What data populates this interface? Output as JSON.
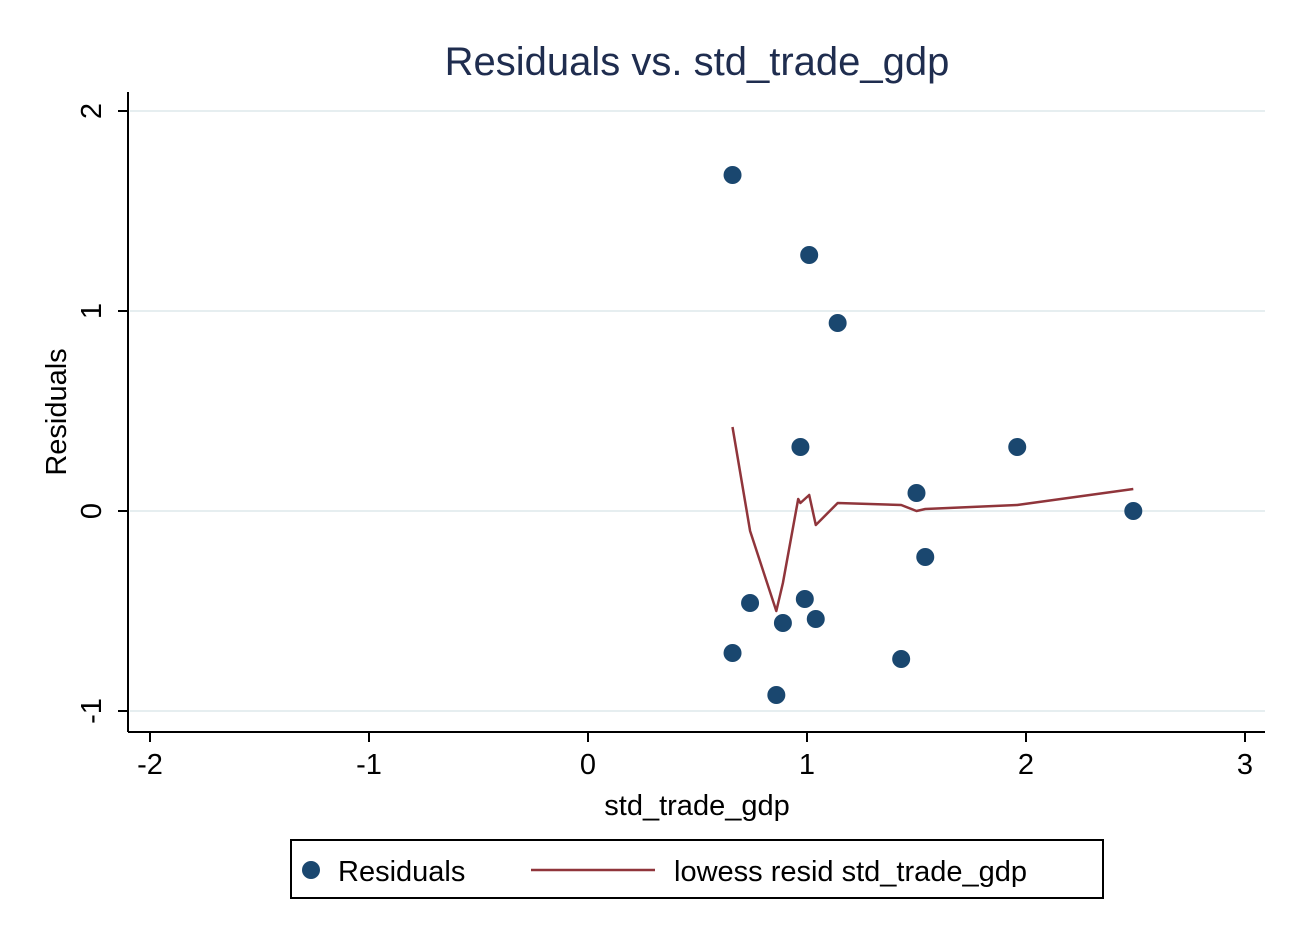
{
  "chart_data": {
    "type": "scatter",
    "title": "Residuals vs. std_trade_gdp",
    "xlabel": "std_trade_gdp",
    "ylabel": "Residuals",
    "xlim": [
      -2.1,
      3.1
    ],
    "ylim": [
      -1.1,
      2.1
    ],
    "xticks": [
      -2,
      -1,
      0,
      1,
      2,
      3
    ],
    "yticks": [
      -1,
      0,
      1,
      2
    ],
    "grid": "horizontal",
    "legend_position": "bottom",
    "series": [
      {
        "name": "Residuals",
        "kind": "scatter",
        "color": "#1a476f",
        "points": [
          {
            "x": 0.66,
            "y": 1.68
          },
          {
            "x": 1.01,
            "y": 1.28
          },
          {
            "x": 1.14,
            "y": 0.94
          },
          {
            "x": 0.97,
            "y": 0.32
          },
          {
            "x": 1.96,
            "y": 0.32
          },
          {
            "x": 1.5,
            "y": 0.09
          },
          {
            "x": 2.49,
            "y": 0.0
          },
          {
            "x": 1.54,
            "y": -0.23
          },
          {
            "x": 0.99,
            "y": -0.44
          },
          {
            "x": 0.74,
            "y": -0.46
          },
          {
            "x": 1.04,
            "y": -0.54
          },
          {
            "x": 0.89,
            "y": -0.56
          },
          {
            "x": 0.66,
            "y": -0.71
          },
          {
            "x": 1.43,
            "y": -0.74
          },
          {
            "x": 0.86,
            "y": -0.92
          }
        ]
      },
      {
        "name": "lowess resid std_trade_gdp",
        "kind": "line",
        "color": "#90353b",
        "points": [
          {
            "x": 0.66,
            "y": 0.42
          },
          {
            "x": 0.74,
            "y": -0.1
          },
          {
            "x": 0.86,
            "y": -0.5
          },
          {
            "x": 0.89,
            "y": -0.36
          },
          {
            "x": 0.96,
            "y": 0.06
          },
          {
            "x": 0.97,
            "y": 0.04
          },
          {
            "x": 0.99,
            "y": 0.06
          },
          {
            "x": 1.01,
            "y": 0.08
          },
          {
            "x": 1.04,
            "y": -0.07
          },
          {
            "x": 1.14,
            "y": 0.04
          },
          {
            "x": 1.43,
            "y": 0.03
          },
          {
            "x": 1.5,
            "y": 0.0
          },
          {
            "x": 1.54,
            "y": 0.01
          },
          {
            "x": 1.96,
            "y": 0.03
          },
          {
            "x": 2.49,
            "y": 0.11
          }
        ]
      }
    ]
  }
}
